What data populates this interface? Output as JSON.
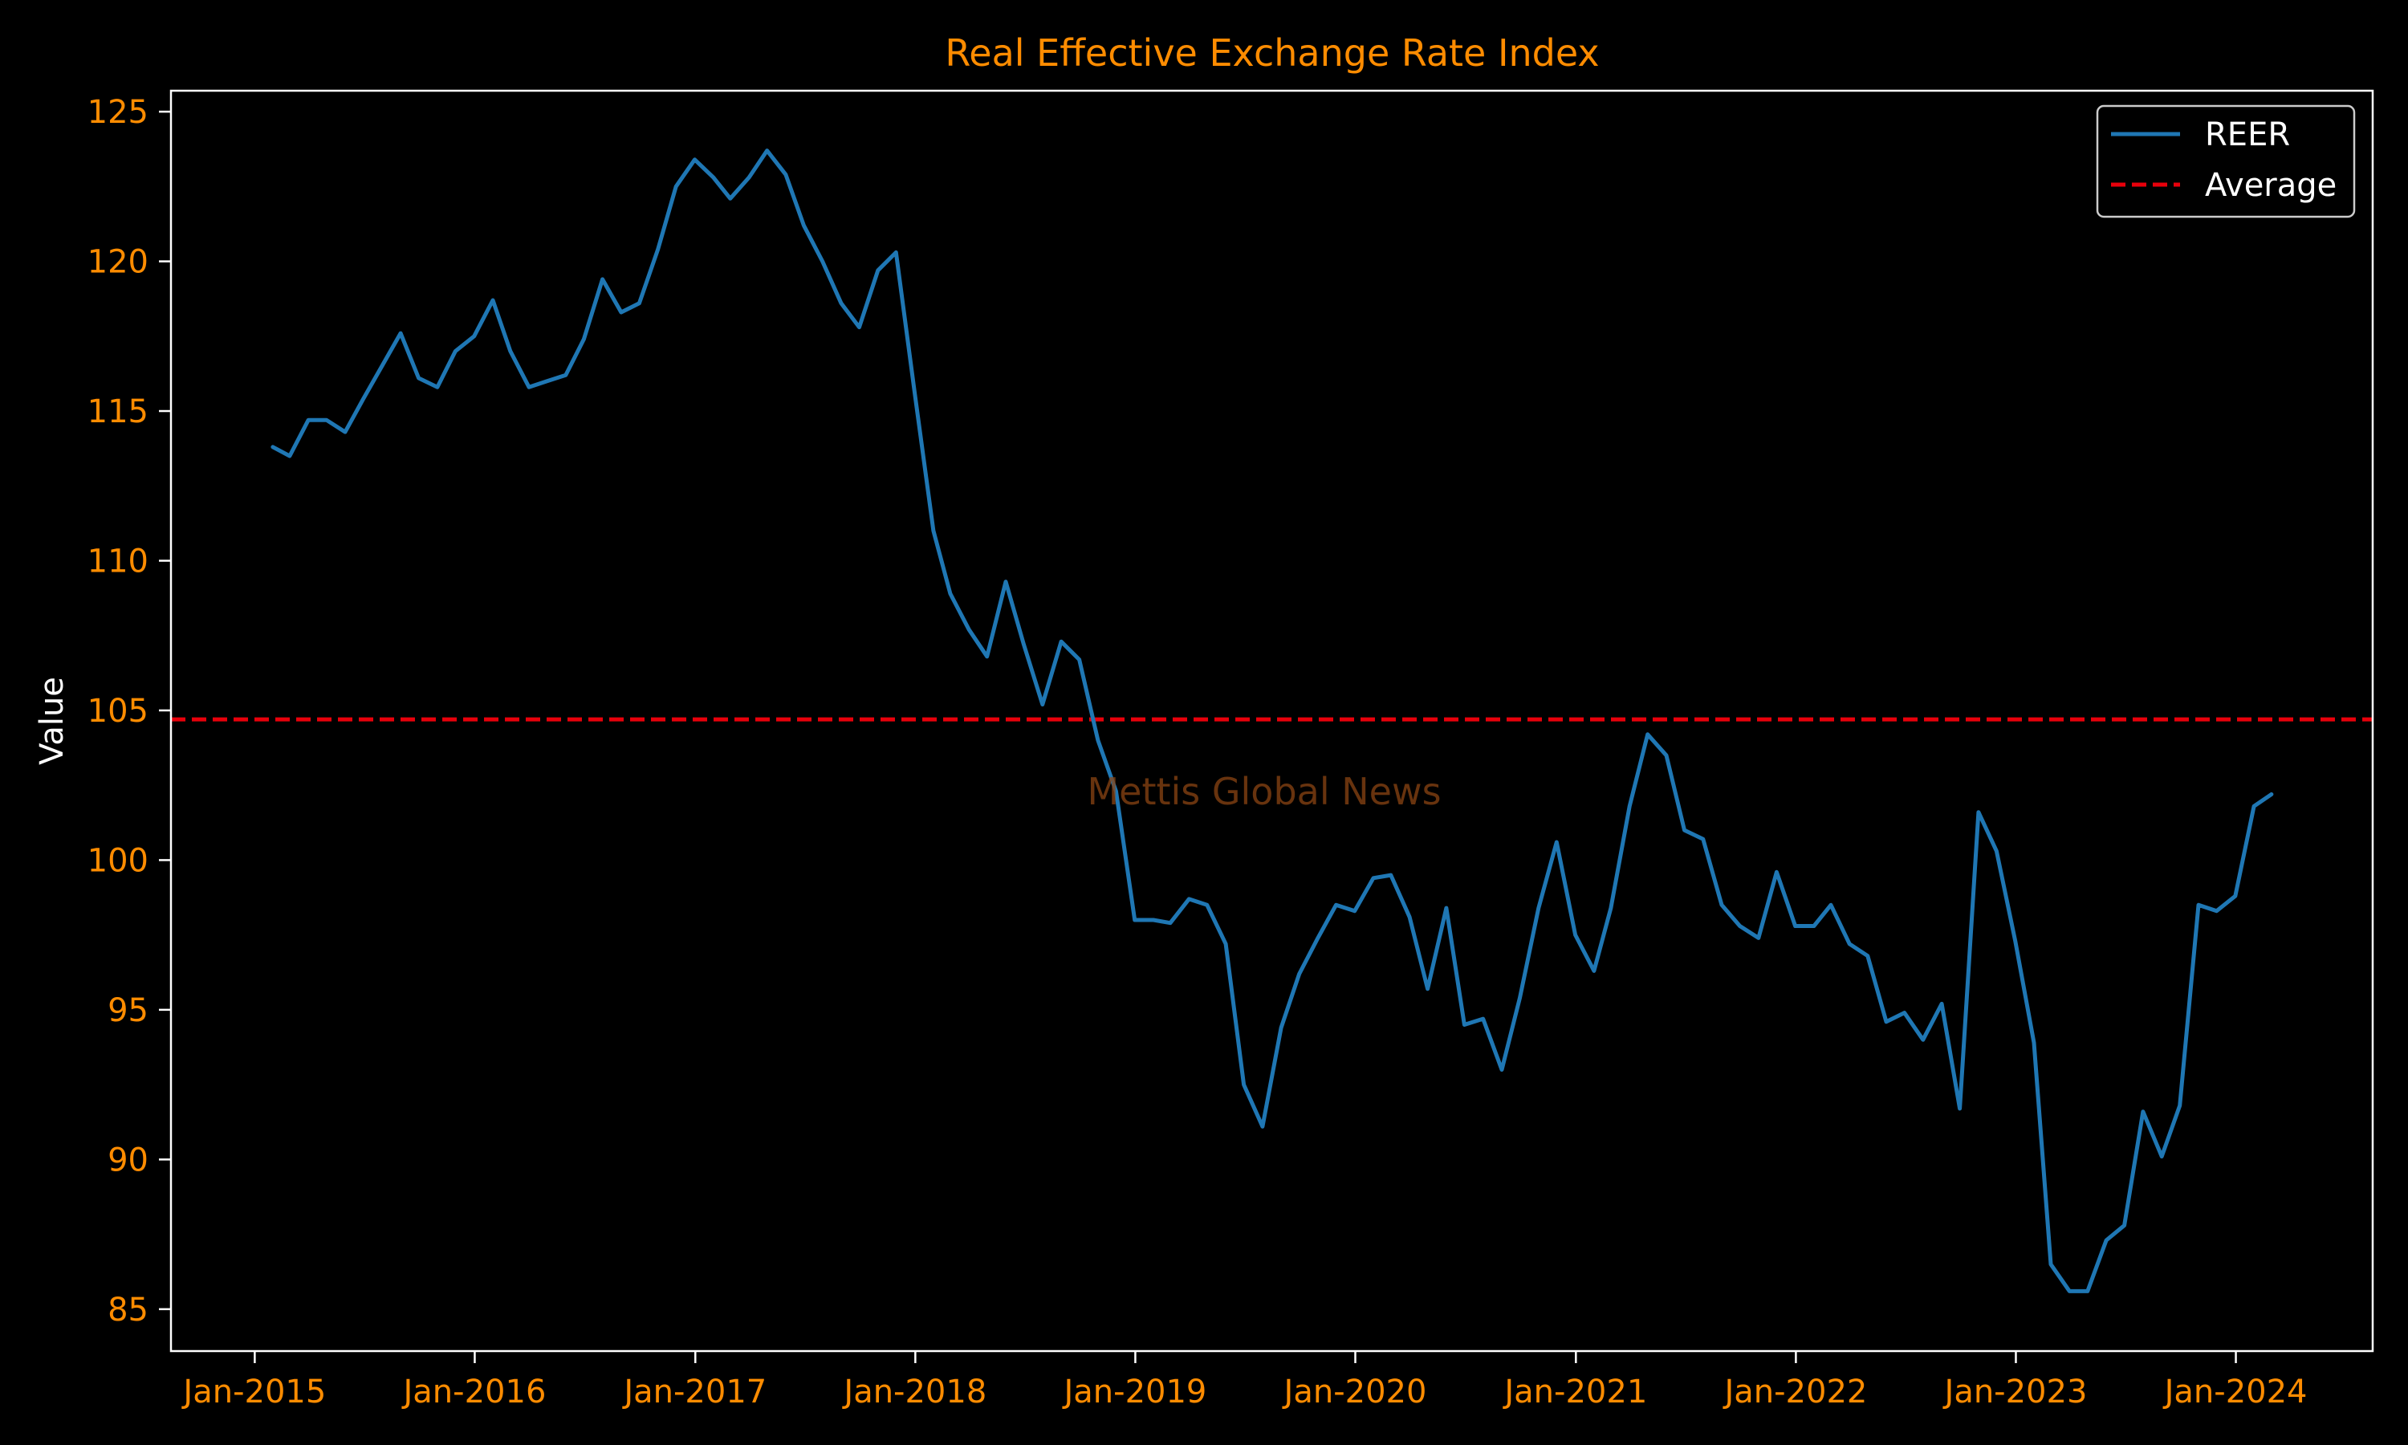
{
  "chart_data": {
    "type": "line",
    "title": "Real Effective Exchange Rate Index",
    "xlabel": "",
    "ylabel": "Value",
    "watermark": "Mettis Global News",
    "xlim": [
      "2014-08-15",
      "2024-08-15"
    ],
    "ylim": [
      83.6,
      125.7
    ],
    "x_ticks": [
      "Jan-2015",
      "Jan-2016",
      "Jan-2017",
      "Jan-2018",
      "Jan-2019",
      "Jan-2020",
      "Jan-2021",
      "Jan-2022",
      "Jan-2023",
      "Jan-2024"
    ],
    "x_tick_dates": [
      "2015-01-01",
      "2016-01-01",
      "2017-01-01",
      "2018-01-01",
      "2019-01-01",
      "2020-01-01",
      "2021-01-01",
      "2022-01-01",
      "2023-01-01",
      "2024-01-01"
    ],
    "y_ticks": [
      85,
      90,
      95,
      100,
      105,
      110,
      115,
      120,
      125
    ],
    "legend": {
      "position": "top-right",
      "entries": [
        "REER",
        "Average"
      ]
    },
    "series": [
      {
        "name": "REER",
        "color": "#1f77b4",
        "style": "solid",
        "x": [
          "2015-01-31",
          "2015-02-28",
          "2015-03-31",
          "2015-04-30",
          "2015-05-31",
          "2015-06-30",
          "2015-07-31",
          "2015-08-31",
          "2015-09-30",
          "2015-10-31",
          "2015-11-30",
          "2015-12-31",
          "2016-01-31",
          "2016-02-29",
          "2016-03-31",
          "2016-04-30",
          "2016-05-31",
          "2016-06-30",
          "2016-07-31",
          "2016-08-31",
          "2016-09-30",
          "2016-10-31",
          "2016-11-30",
          "2016-12-31",
          "2017-01-31",
          "2017-02-28",
          "2017-03-31",
          "2017-04-30",
          "2017-05-31",
          "2017-06-30",
          "2017-07-31",
          "2017-08-31",
          "2017-09-30",
          "2017-10-31",
          "2017-11-30",
          "2017-12-31",
          "2018-01-31",
          "2018-02-28",
          "2018-03-31",
          "2018-04-30",
          "2018-05-31",
          "2018-06-30",
          "2018-07-31",
          "2018-08-31",
          "2018-09-30",
          "2018-10-31",
          "2018-11-30",
          "2018-12-31",
          "2019-01-31",
          "2019-02-28",
          "2019-03-31",
          "2019-04-30",
          "2019-05-31",
          "2019-06-30",
          "2019-07-31",
          "2019-08-31",
          "2019-09-30",
          "2019-10-31",
          "2019-11-30",
          "2019-12-31",
          "2020-01-31",
          "2020-02-29",
          "2020-03-31",
          "2020-04-30",
          "2020-05-31",
          "2020-06-30",
          "2020-07-31",
          "2020-08-31",
          "2020-09-30",
          "2020-10-31",
          "2020-11-30",
          "2020-12-31",
          "2021-01-31",
          "2021-02-28",
          "2021-03-31",
          "2021-04-30",
          "2021-05-31",
          "2021-06-30",
          "2021-07-31",
          "2021-08-31",
          "2021-09-30",
          "2021-10-31",
          "2021-11-30",
          "2021-12-31",
          "2022-01-31",
          "2022-02-28",
          "2022-03-31",
          "2022-04-30",
          "2022-05-31",
          "2022-06-30",
          "2022-07-31",
          "2022-08-31",
          "2022-09-30",
          "2022-10-31",
          "2022-11-30",
          "2022-12-31",
          "2023-01-31",
          "2023-02-28",
          "2023-03-31",
          "2023-04-30",
          "2023-05-31",
          "2023-06-30",
          "2023-07-31",
          "2023-08-31",
          "2023-09-30",
          "2023-10-31",
          "2023-11-30",
          "2023-12-31",
          "2024-01-31",
          "2024-02-29"
        ],
        "values": [
          113.8,
          113.5,
          114.7,
          114.7,
          114.3,
          115.4,
          116.5,
          117.6,
          116.1,
          115.8,
          117.0,
          117.5,
          118.7,
          117.0,
          115.8,
          116.0,
          116.2,
          117.4,
          119.4,
          118.3,
          118.6,
          120.4,
          122.5,
          123.4,
          122.8,
          122.1,
          122.8,
          123.7,
          122.9,
          121.2,
          120.0,
          118.6,
          117.8,
          119.7,
          120.3,
          115.6,
          111.0,
          108.9,
          107.7,
          106.8,
          109.3,
          107.2,
          105.2,
          107.3,
          106.7,
          104.0,
          102.3,
          98.0,
          98.0,
          97.9,
          98.7,
          98.5,
          97.2,
          92.5,
          91.1,
          94.4,
          96.2,
          97.4,
          98.5,
          98.3,
          99.4,
          99.5,
          98.1,
          95.7,
          98.4,
          94.5,
          94.7,
          93.0,
          95.4,
          98.4,
          100.6,
          97.5,
          96.3,
          98.4,
          101.8,
          104.2,
          103.5,
          101.0,
          100.7,
          98.5,
          97.8,
          97.4,
          99.6,
          97.8,
          97.8,
          98.5,
          97.2,
          96.8,
          94.6,
          94.9,
          94.0,
          95.2,
          91.7,
          101.6,
          100.3,
          97.3,
          93.9,
          86.5,
          85.6,
          85.6,
          87.3,
          87.8,
          91.6,
          90.1,
          91.8,
          98.5,
          98.3,
          98.8,
          101.8,
          102.2
        ]
      },
      {
        "name": "Average",
        "color": "#e8000b",
        "style": "dashed",
        "value": 104.7
      }
    ]
  }
}
